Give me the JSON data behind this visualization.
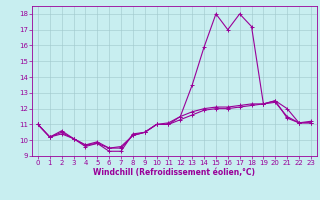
{
  "title": "",
  "xlabel": "Windchill (Refroidissement éolien,°C)",
  "ylabel": "",
  "background_color": "#c8eef0",
  "grid_color": "#a0c8cc",
  "line_color": "#990099",
  "spine_color": "#990099",
  "xlim": [
    -0.5,
    23.5
  ],
  "ylim": [
    9,
    18.5
  ],
  "yticks": [
    9,
    10,
    11,
    12,
    13,
    14,
    15,
    16,
    17,
    18
  ],
  "xticks": [
    0,
    1,
    2,
    3,
    4,
    5,
    6,
    7,
    8,
    9,
    10,
    11,
    12,
    13,
    14,
    15,
    16,
    17,
    18,
    19,
    20,
    21,
    22,
    23
  ],
  "line1_x": [
    0,
    1,
    2,
    3,
    4,
    5,
    6,
    7,
    8,
    9,
    10,
    11,
    12,
    13,
    14,
    15,
    16,
    17,
    18,
    19,
    20,
    21,
    22,
    23
  ],
  "line1_y": [
    11.0,
    10.2,
    10.6,
    10.1,
    9.6,
    9.8,
    9.3,
    9.3,
    10.4,
    10.5,
    11.0,
    11.0,
    11.5,
    13.5,
    15.9,
    18.0,
    17.0,
    18.0,
    17.2,
    12.3,
    12.5,
    12.0,
    11.1,
    11.2
  ],
  "line2_x": [
    0,
    1,
    2,
    3,
    4,
    5,
    6,
    7,
    8,
    9,
    10,
    11,
    12,
    13,
    14,
    15,
    16,
    17,
    18,
    19,
    20,
    21,
    22,
    23
  ],
  "line2_y": [
    11.0,
    10.2,
    10.5,
    10.1,
    9.7,
    9.8,
    9.5,
    9.5,
    10.3,
    10.5,
    11.0,
    11.1,
    11.5,
    11.8,
    12.0,
    12.1,
    12.1,
    12.2,
    12.3,
    12.3,
    12.4,
    11.5,
    11.1,
    11.1
  ],
  "line3_x": [
    0,
    1,
    2,
    3,
    4,
    5,
    6,
    7,
    8,
    9,
    10,
    11,
    12,
    13,
    14,
    15,
    16,
    17,
    18,
    19,
    20,
    21,
    22,
    23
  ],
  "line3_y": [
    11.0,
    10.2,
    10.4,
    10.1,
    9.7,
    9.9,
    9.5,
    9.6,
    10.3,
    10.5,
    11.0,
    11.0,
    11.3,
    11.6,
    11.9,
    12.0,
    12.0,
    12.1,
    12.2,
    12.3,
    12.5,
    11.4,
    11.1,
    11.1
  ],
  "marker": "+",
  "markersize": 3,
  "linewidth": 0.8,
  "tick_fontsize": 5,
  "label_fontsize": 5.5
}
